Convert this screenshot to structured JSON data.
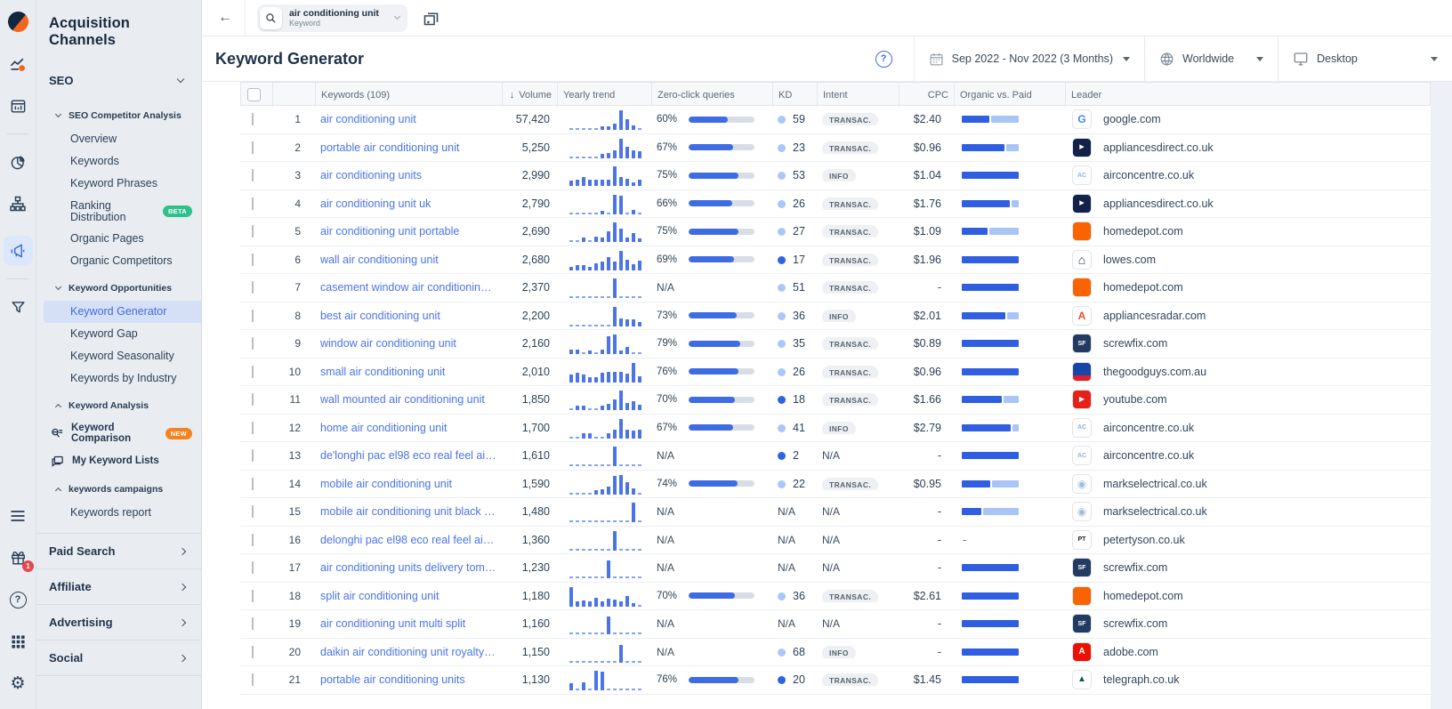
{
  "sidebar": {
    "title": "Acquisition Channels",
    "seo_label": "SEO",
    "rail_icons": [
      "similarweb-logo",
      "trending-chart-icon",
      "dashboard-report-icon",
      "pie-chart-icon",
      "sitemap-icon",
      "megaphone-icon",
      "funnel-icon"
    ],
    "rail_active": "megaphone-icon",
    "rail_bottom_icons": [
      "menu-icon",
      "gift-icon",
      "help-icon",
      "apps-grid-icon",
      "settings-gear-icon"
    ],
    "gift_badge": "1",
    "sections": [
      {
        "label": "SEO Competitor Analysis",
        "chevron": "down",
        "items": [
          {
            "label": "Overview"
          },
          {
            "label": "Keywords"
          },
          {
            "label": "Keyword Phrases"
          },
          {
            "label": "Ranking Distribution",
            "badge": "BETA",
            "badge_color": "#2fc18c"
          },
          {
            "label": "Organic Pages"
          },
          {
            "label": "Organic Competitors"
          }
        ]
      },
      {
        "label": "Keyword Opportunities",
        "chevron": "down",
        "items": [
          {
            "label": "Keyword Generator",
            "active": true
          },
          {
            "label": "Keyword Gap"
          },
          {
            "label": "Keyword Seasonality"
          },
          {
            "label": "Keywords by Industry"
          }
        ]
      },
      {
        "label": "Keyword Analysis",
        "chevron": "up",
        "items": [
          {
            "label": "Keyword Comparison",
            "badge": "NEW",
            "badge_color": "#f6821f",
            "icon": "keyword-comparison-icon",
            "small": true
          },
          {
            "label": "My Keyword Lists",
            "icon": "keyword-lists-icon",
            "small": true
          }
        ]
      },
      {
        "label": "keywords campaigns",
        "chevron": "up",
        "items": [
          {
            "label": "Keywords report"
          }
        ]
      }
    ],
    "groups": [
      "Paid Search",
      "Affiliate",
      "Advertising",
      "Social"
    ]
  },
  "topbar": {
    "search_value": "air conditioning unit",
    "search_type": "Keyword"
  },
  "header": {
    "title": "Keyword Generator",
    "date_range": "Sep 2022 - Nov 2022 (3 Months)",
    "region": "Worldwide",
    "device": "Desktop"
  },
  "table": {
    "headers": {
      "keywords": "Keywords (109)",
      "volume": "Volume",
      "trend": "Yearly trend",
      "zero_click": "Zero-click queries",
      "kd": "KD",
      "intent": "Intent",
      "cpc": "CPC",
      "organic_paid": "Organic vs. Paid",
      "leader": "Leader"
    },
    "sorted_by": "volume",
    "colors": {
      "accent_blue": "#4a74e8",
      "kd_low_dot": "#2e63e3",
      "kd_high_dot": "#abc6f8",
      "organic_bar": "#2f5fe0",
      "paid_bar": "#a9c4f7"
    },
    "rows": [
      {
        "rank": 1,
        "keyword": "air conditioning unit",
        "volume": "57,420",
        "trend": [
          0,
          0,
          0,
          0,
          0,
          8,
          8,
          22,
          100,
          48,
          10,
          0
        ],
        "zero_click": "60%",
        "zc_pct": 60,
        "kd": "59",
        "kd_low": false,
        "intent": "TRANSAC.",
        "cpc": "$2.40",
        "organic": 48,
        "paid": 52,
        "leader": "google.com",
        "icon": "google"
      },
      {
        "rank": 2,
        "keyword": "portable air conditioning unit",
        "volume": "5,250",
        "trend": [
          0,
          0,
          0,
          0,
          0,
          10,
          12,
          30,
          100,
          52,
          32,
          26
        ],
        "zero_click": "67%",
        "zc_pct": 67,
        "kd": "23",
        "kd_low": false,
        "intent": "TRANSAC.",
        "cpc": "$0.96",
        "organic": 75,
        "paid": 25,
        "leader": "appliancesdirect.co.uk",
        "icon": "appliancesdirect"
      },
      {
        "rank": 3,
        "keyword": "air conditioning units",
        "volume": "2,990",
        "trend": [
          18,
          24,
          40,
          22,
          20,
          20,
          24,
          100,
          40,
          26,
          8,
          20
        ],
        "zero_click": "75%",
        "zc_pct": 75,
        "kd": "53",
        "kd_low": false,
        "intent": "INFO",
        "cpc": "$1.04",
        "organic": 100,
        "paid": 0,
        "leader": "airconcentre.co.uk",
        "icon": "airconcentre"
      },
      {
        "rank": 4,
        "keyword": "air conditioning unit uk",
        "volume": "2,790",
        "trend": [
          0,
          0,
          0,
          0,
          0,
          6,
          0,
          100,
          92,
          0,
          10,
          0
        ],
        "zero_click": "66%",
        "zc_pct": 66,
        "kd": "26",
        "kd_low": false,
        "intent": "TRANSAC.",
        "cpc": "$1.76",
        "organic": 84,
        "paid": 16,
        "leader": "appliancesdirect.co.uk",
        "icon": "appliancesdirect"
      },
      {
        "rank": 5,
        "keyword": "air conditioning unit portable",
        "volume": "2,690",
        "trend": [
          0,
          0,
          14,
          0,
          16,
          10,
          48,
          100,
          62,
          12,
          38,
          6
        ],
        "zero_click": "75%",
        "zc_pct": 75,
        "kd": "27",
        "kd_low": false,
        "intent": "TRANSAC.",
        "cpc": "$1.09",
        "organic": 46,
        "paid": 54,
        "leader": "homedepot.com",
        "icon": "homedepot"
      },
      {
        "rank": 6,
        "keyword": "wall air conditioning unit",
        "volume": "2,680",
        "trend": [
          6,
          16,
          12,
          6,
          26,
          36,
          62,
          38,
          100,
          48,
          22,
          42
        ],
        "zero_click": "69%",
        "zc_pct": 69,
        "kd": "17",
        "kd_low": true,
        "intent": "TRANSAC.",
        "cpc": "$1.96",
        "organic": 100,
        "paid": 0,
        "leader": "lowes.com",
        "icon": "lowes"
      },
      {
        "rank": 7,
        "keyword": "casement window air conditioning …",
        "volume": "2,370",
        "trend": [
          0,
          0,
          0,
          0,
          0,
          0,
          0,
          100,
          0,
          0,
          0,
          0
        ],
        "zero_click": "N/A",
        "zc_pct": null,
        "kd": "51",
        "kd_low": false,
        "intent": "TRANSAC.",
        "cpc": "-",
        "organic": 100,
        "paid": 0,
        "leader": "homedepot.com",
        "icon": "homedepot"
      },
      {
        "rank": 8,
        "keyword": "best air conditioning unit",
        "volume": "2,200",
        "trend": [
          0,
          0,
          0,
          0,
          0,
          0,
          0,
          100,
          32,
          26,
          26,
          10
        ],
        "zero_click": "73%",
        "zc_pct": 73,
        "kd": "36",
        "kd_low": false,
        "intent": "INFO",
        "cpc": "$2.01",
        "organic": 76,
        "paid": 24,
        "leader": "appliancesradar.com",
        "icon": "appliancesradar"
      },
      {
        "rank": 9,
        "keyword": "window air conditioning unit",
        "volume": "2,160",
        "trend": [
          10,
          12,
          0,
          6,
          0,
          10,
          92,
          100,
          6,
          28,
          0,
          0
        ],
        "zero_click": "79%",
        "zc_pct": 79,
        "kd": "35",
        "kd_low": false,
        "intent": "TRANSAC.",
        "cpc": "$0.89",
        "organic": 100,
        "paid": 0,
        "leader": "screwfix.com",
        "icon": "screwfix"
      },
      {
        "rank": 10,
        "keyword": "small air conditioning unit",
        "volume": "2,010",
        "trend": [
          30,
          42,
          30,
          16,
          12,
          40,
          46,
          46,
          46,
          34,
          100,
          20
        ],
        "zero_click": "76%",
        "zc_pct": 76,
        "kd": "26",
        "kd_low": false,
        "intent": "TRANSAC.",
        "cpc": "$0.96",
        "organic": 100,
        "paid": 0,
        "leader": "thegoodguys.com.au",
        "icon": "thegoodguys"
      },
      {
        "rank": 11,
        "keyword": "wall mounted air conditioning unit",
        "volume": "1,850",
        "trend": [
          0,
          10,
          12,
          0,
          0,
          10,
          22,
          48,
          100,
          28,
          38,
          18
        ],
        "zero_click": "70%",
        "zc_pct": 70,
        "kd": "18",
        "kd_low": true,
        "intent": "TRANSAC.",
        "cpc": "$1.66",
        "organic": 70,
        "paid": 30,
        "leader": "youtube.com",
        "icon": "youtube"
      },
      {
        "rank": 12,
        "keyword": "home air conditioning unit",
        "volume": "1,700",
        "trend": [
          0,
          0,
          12,
          14,
          0,
          0,
          16,
          38,
          100,
          38,
          32,
          38
        ],
        "zero_click": "67%",
        "zc_pct": 67,
        "kd": "41",
        "kd_low": false,
        "intent": "INFO",
        "cpc": "$2.79",
        "organic": 86,
        "paid": 14,
        "leader": "airconcentre.co.uk",
        "icon": "airconcentre"
      },
      {
        "rank": 13,
        "keyword": "de'longhi pac el98 eco real feel air …",
        "volume": "1,610",
        "trend": [
          0,
          0,
          0,
          0,
          0,
          0,
          0,
          100,
          0,
          0,
          0,
          0
        ],
        "zero_click": "N/A",
        "zc_pct": null,
        "kd": "2",
        "kd_low": true,
        "intent": "N/A",
        "cpc": "-",
        "organic": 100,
        "paid": 0,
        "leader": "airconcentre.co.uk",
        "icon": "airconcentre"
      },
      {
        "rank": 14,
        "keyword": "mobile air conditioning unit",
        "volume": "1,590",
        "trend": [
          0,
          0,
          0,
          0,
          10,
          12,
          28,
          92,
          100,
          58,
          18,
          0
        ],
        "zero_click": "74%",
        "zc_pct": 74,
        "kd": "22",
        "kd_low": false,
        "intent": "TRANSAC.",
        "cpc": "$0.95",
        "organic": 50,
        "paid": 50,
        "leader": "markselectrical.co.uk",
        "icon": "markselectrical"
      },
      {
        "rank": 15,
        "keyword": "mobile air conditioning unit black f…",
        "volume": "1,480",
        "trend": [
          0,
          0,
          0,
          0,
          0,
          0,
          0,
          0,
          0,
          0,
          100,
          0
        ],
        "zero_click": "N/A",
        "zc_pct": null,
        "kd": "N/A",
        "kd_low": null,
        "intent": "N/A",
        "cpc": "-",
        "organic": 35,
        "paid": 65,
        "leader": "markselectrical.co.uk",
        "icon": "markselectrical"
      },
      {
        "rank": 16,
        "keyword": "delonghi pac el98 eco real feel air …",
        "volume": "1,360",
        "trend": [
          0,
          0,
          0,
          0,
          0,
          0,
          0,
          100,
          0,
          0,
          0,
          0
        ],
        "zero_click": "N/A",
        "zc_pct": null,
        "kd": "N/A",
        "kd_low": null,
        "intent": "N/A",
        "cpc": "-",
        "organic": null,
        "paid": null,
        "leader": "petertyson.co.uk",
        "icon": "petertyson"
      },
      {
        "rank": 17,
        "keyword": "air conditioning units delivery tom…",
        "volume": "1,230",
        "trend": [
          0,
          0,
          0,
          0,
          0,
          0,
          90,
          0,
          0,
          0,
          0,
          0
        ],
        "zero_click": "N/A",
        "zc_pct": null,
        "kd": "N/A",
        "kd_low": null,
        "intent": "N/A",
        "cpc": "-",
        "organic": 100,
        "paid": 0,
        "leader": "screwfix.com",
        "icon": "screwfix"
      },
      {
        "rank": 18,
        "keyword": "split air conditioning unit",
        "volume": "1,180",
        "trend": [
          100,
          12,
          22,
          16,
          36,
          12,
          32,
          26,
          12,
          48,
          6,
          0
        ],
        "zero_click": "70%",
        "zc_pct": 70,
        "kd": "36",
        "kd_low": false,
        "intent": "TRANSAC.",
        "cpc": "$2.61",
        "organic": 100,
        "paid": 0,
        "leader": "homedepot.com",
        "icon": "homedepot"
      },
      {
        "rank": 19,
        "keyword": "air conditioning unit multi split",
        "volume": "1,160",
        "trend": [
          0,
          0,
          0,
          0,
          0,
          0,
          90,
          0,
          0,
          0,
          0,
          0
        ],
        "zero_click": "N/A",
        "zc_pct": null,
        "kd": "N/A",
        "kd_low": null,
        "intent": "N/A",
        "cpc": "-",
        "organic": 100,
        "paid": 0,
        "leader": "screwfix.com",
        "icon": "screwfix"
      },
      {
        "rank": 20,
        "keyword": "daikin air conditioning unit royalty …",
        "volume": "1,150",
        "trend": [
          0,
          0,
          0,
          0,
          0,
          0,
          0,
          0,
          90,
          0,
          0,
          0
        ],
        "zero_click": "N/A",
        "zc_pct": null,
        "kd": "68",
        "kd_low": false,
        "intent": "INFO",
        "cpc": "-",
        "organic": 100,
        "paid": 0,
        "leader": "adobe.com",
        "icon": "adobe"
      },
      {
        "rank": 21,
        "keyword": "portable air conditioning units",
        "volume": "1,130",
        "trend": [
          26,
          0,
          32,
          0,
          100,
          95,
          0,
          0,
          0,
          0,
          0,
          0
        ],
        "zero_click": "76%",
        "zc_pct": 76,
        "kd": "20",
        "kd_low": true,
        "intent": "TRANSAC.",
        "cpc": "$1.45",
        "organic": 100,
        "paid": 0,
        "leader": "telegraph.co.uk",
        "icon": "telegraph"
      }
    ]
  },
  "icons": {
    "google": {
      "glyph": "G",
      "color": "#4285F4",
      "bg": "#ffffff",
      "size": 12,
      "weight": 700
    },
    "appliancesdirect": {
      "glyph": "▸",
      "color": "#ffffff",
      "bg": "#14224a",
      "size": 11,
      "weight": 700
    },
    "airconcentre": {
      "glyph": "AC",
      "color": "#8fb2d8",
      "bg": "#ffffff",
      "size": 7,
      "weight": 700
    },
    "homedepot": {
      "glyph": "",
      "color": "#ffffff",
      "bg": "#f96302",
      "size": 8,
      "weight": 700
    },
    "lowes": {
      "glyph": "⌂",
      "color": "#12304f",
      "bg": "#ffffff",
      "size": 14,
      "weight": 700
    },
    "appliancesradar": {
      "glyph": "A",
      "color": "#e84e2a",
      "bg": "#ffffff",
      "size": 12,
      "weight": 700
    },
    "screwfix": {
      "glyph": "SF",
      "color": "#ffffff",
      "bg": "#233a63",
      "size": 7,
      "weight": 700
    },
    "thegoodguys": {
      "glyph": "",
      "color": "#ffffff",
      "bg": "linear-gradient(180deg,#1646a8 70%,#e01d2c 70%)",
      "size": 8,
      "weight": 700
    },
    "youtube": {
      "glyph": "▶",
      "color": "#ffffff",
      "bg": "#e62117",
      "size": 8,
      "weight": 400
    },
    "markselectrical": {
      "glyph": "◉",
      "color": "#9fc0dc",
      "bg": "#ffffff",
      "size": 12,
      "weight": 400
    },
    "petertyson": {
      "glyph": "PT",
      "color": "#222222",
      "bg": "#ffffff",
      "size": 7,
      "weight": 700
    },
    "adobe": {
      "glyph": "A",
      "color": "#ffffff",
      "bg": "#eb1000",
      "size": 10,
      "weight": 700
    },
    "telegraph": {
      "glyph": "▲",
      "color": "#0e5a50",
      "bg": "#ffffff",
      "size": 10,
      "weight": 400
    }
  }
}
